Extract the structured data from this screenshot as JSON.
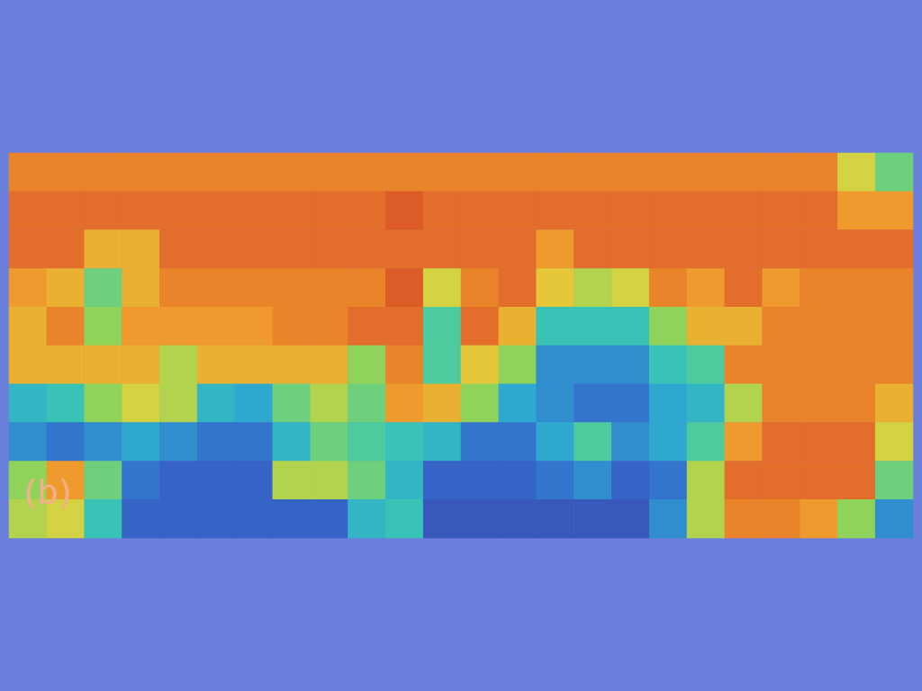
{
  "chart_data": {
    "type": "heatmap",
    "annotation": "(b)",
    "tick_labels": false,
    "color_range": [
      0,
      1
    ],
    "cells": [
      [
        0.8,
        0.8,
        0.8,
        0.8,
        0.8,
        0.8,
        0.8,
        0.8,
        0.8,
        0.8,
        0.8,
        0.8,
        0.8,
        0.8,
        0.8,
        0.8,
        0.8,
        0.8,
        0.8,
        0.8,
        0.8,
        0.8,
        0.6,
        0.45
      ],
      [
        0.85,
        0.85,
        0.85,
        0.85,
        0.85,
        0.85,
        0.85,
        0.85,
        0.85,
        0.85,
        0.9,
        0.85,
        0.85,
        0.85,
        0.85,
        0.85,
        0.85,
        0.85,
        0.85,
        0.85,
        0.85,
        0.85,
        0.75,
        0.75
      ],
      [
        0.85,
        0.85,
        0.7,
        0.7,
        0.85,
        0.85,
        0.85,
        0.85,
        0.85,
        0.85,
        0.85,
        0.85,
        0.85,
        0.85,
        0.75,
        0.85,
        0.85,
        0.85,
        0.85,
        0.85,
        0.85,
        0.85,
        0.85,
        0.85
      ],
      [
        0.75,
        0.7,
        0.45,
        0.7,
        0.8,
        0.8,
        0.8,
        0.8,
        0.8,
        0.8,
        0.9,
        0.6,
        0.8,
        0.85,
        0.65,
        0.55,
        0.6,
        0.8,
        0.75,
        0.85,
        0.75,
        0.8,
        0.8,
        0.8
      ],
      [
        0.7,
        0.8,
        0.5,
        0.75,
        0.75,
        0.75,
        0.75,
        0.8,
        0.8,
        0.85,
        0.85,
        0.4,
        0.85,
        0.7,
        0.35,
        0.35,
        0.35,
        0.5,
        0.7,
        0.7,
        0.8,
        0.8,
        0.8,
        0.8
      ],
      [
        0.7,
        0.7,
        0.7,
        0.7,
        0.55,
        0.7,
        0.7,
        0.7,
        0.7,
        0.5,
        0.8,
        0.4,
        0.65,
        0.5,
        0.2,
        0.2,
        0.2,
        0.35,
        0.4,
        0.8,
        0.8,
        0.8,
        0.8,
        0.8
      ],
      [
        0.3,
        0.35,
        0.5,
        0.6,
        0.55,
        0.3,
        0.25,
        0.45,
        0.55,
        0.45,
        0.75,
        0.7,
        0.5,
        0.25,
        0.2,
        0.15,
        0.15,
        0.25,
        0.3,
        0.55,
        0.8,
        0.8,
        0.8,
        0.7
      ],
      [
        0.2,
        0.15,
        0.2,
        0.25,
        0.2,
        0.15,
        0.15,
        0.3,
        0.45,
        0.4,
        0.35,
        0.3,
        0.15,
        0.15,
        0.25,
        0.4,
        0.2,
        0.25,
        0.4,
        0.75,
        0.85,
        0.85,
        0.85,
        0.6
      ],
      [
        0.5,
        0.75,
        0.45,
        0.15,
        0.1,
        0.1,
        0.1,
        0.55,
        0.55,
        0.45,
        0.3,
        0.1,
        0.1,
        0.1,
        0.15,
        0.2,
        0.1,
        0.15,
        0.55,
        0.85,
        0.85,
        0.85,
        0.85,
        0.45
      ],
      [
        0.55,
        0.6,
        0.35,
        0.1,
        0.1,
        0.1,
        0.1,
        0.1,
        0.1,
        0.3,
        0.35,
        0.05,
        0.05,
        0.05,
        0.05,
        0.05,
        0.05,
        0.2,
        0.55,
        0.8,
        0.8,
        0.75,
        0.5,
        0.2
      ]
    ]
  }
}
